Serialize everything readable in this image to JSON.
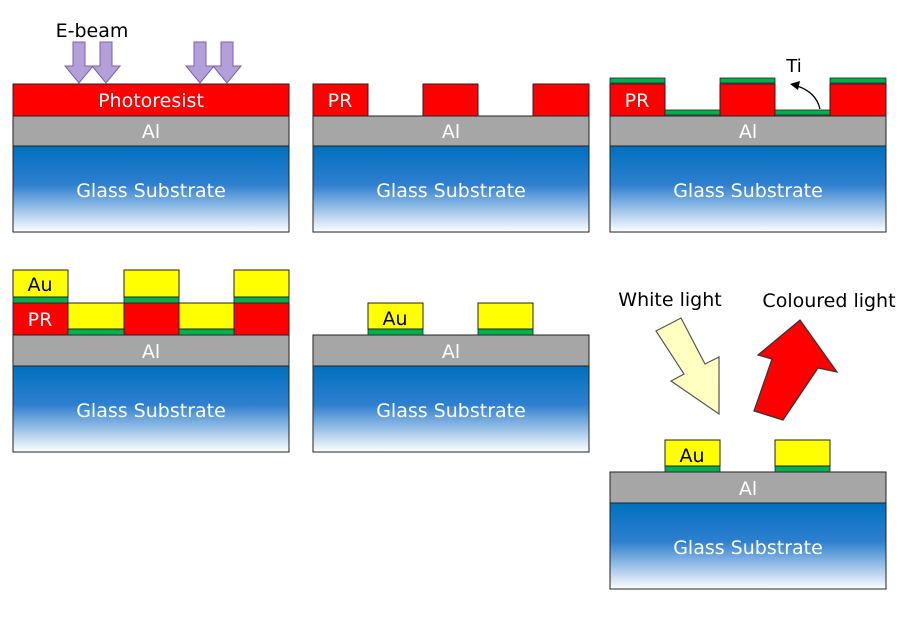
{
  "labels": {
    "ebeam": "E-beam",
    "photoresist": "Photoresist",
    "pr": "PR",
    "al": "Al",
    "substrate": "Glass Substrate",
    "ti": "Ti",
    "au": "Au",
    "white_light": "White light",
    "coloured_light": "Coloured light"
  },
  "colors": {
    "photoresist": "#ff0000",
    "aluminium": "#a6a6a6",
    "substrate_top": "#0070c0",
    "substrate_bottom": "#ffffff",
    "titanium": "#00b050",
    "gold": "#ffff00",
    "ebeam_arrow": "#b4a0d8",
    "white_light_arrow": "#ffffc0",
    "coloured_light_arrow": "#ff0000"
  }
}
